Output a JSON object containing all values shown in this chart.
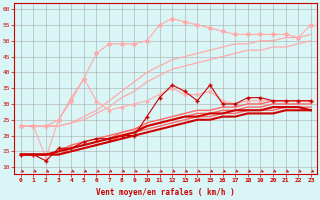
{
  "xlabel": "Vent moyen/en rafales ( km/h )",
  "x": [
    0,
    1,
    2,
    3,
    4,
    5,
    6,
    7,
    8,
    9,
    10,
    11,
    12,
    13,
    14,
    15,
    16,
    17,
    18,
    19,
    20,
    21,
    22,
    23
  ],
  "lines": [
    {
      "name": "light1_diamond",
      "color": "#ffaaaa",
      "marker": "D",
      "markersize": 2.0,
      "linewidth": 0.8,
      "values": [
        23,
        23,
        23,
        25,
        31,
        38,
        46,
        49,
        49,
        49,
        50,
        55,
        57,
        56,
        55,
        54,
        53,
        52,
        52,
        52,
        52,
        52,
        51,
        55
      ]
    },
    {
      "name": "light2_triangle",
      "color": "#ffaaaa",
      "marker": "^",
      "markersize": 2.0,
      "linewidth": 0.8,
      "values": [
        23,
        23,
        13,
        25,
        32,
        38,
        31,
        28,
        29,
        30,
        31,
        33,
        35,
        33,
        33,
        34,
        31,
        30,
        31,
        31,
        31,
        31,
        31,
        31
      ]
    },
    {
      "name": "light3_line",
      "color": "#ffaaaa",
      "marker": null,
      "markersize": 1.5,
      "linewidth": 0.9,
      "values": [
        23,
        23,
        23,
        23,
        24,
        26,
        28,
        31,
        34,
        37,
        40,
        42,
        44,
        45,
        46,
        47,
        48,
        49,
        49,
        50,
        50,
        51,
        51,
        52
      ]
    },
    {
      "name": "light4_line",
      "color": "#ffaaaa",
      "marker": null,
      "markersize": 1.5,
      "linewidth": 0.9,
      "values": [
        23,
        23,
        23,
        23,
        24,
        25,
        27,
        29,
        32,
        34,
        37,
        39,
        41,
        42,
        43,
        44,
        45,
        46,
        47,
        47,
        48,
        48,
        49,
        50
      ]
    },
    {
      "name": "medium1_line",
      "color": "#ff6666",
      "marker": null,
      "markersize": 1.5,
      "linewidth": 1.0,
      "values": [
        14,
        14,
        14,
        15,
        17,
        18,
        19,
        20,
        21,
        22,
        24,
        25,
        26,
        27,
        28,
        28,
        29,
        29,
        30,
        30,
        31,
        31,
        31,
        31
      ]
    },
    {
      "name": "medium2_line",
      "color": "#ff6666",
      "marker": null,
      "markersize": 1.5,
      "linewidth": 1.0,
      "values": [
        14,
        14,
        14,
        14,
        16,
        17,
        18,
        19,
        21,
        22,
        23,
        24,
        25,
        26,
        27,
        27,
        28,
        28,
        29,
        29,
        30,
        30,
        30,
        30
      ]
    },
    {
      "name": "medium3_line",
      "color": "#ff6666",
      "marker": null,
      "markersize": 1.5,
      "linewidth": 1.0,
      "values": [
        14,
        14,
        14,
        14,
        15,
        16,
        17,
        18,
        20,
        21,
        22,
        23,
        24,
        25,
        26,
        26,
        27,
        27,
        28,
        28,
        28,
        29,
        29,
        29
      ]
    },
    {
      "name": "dark_noisy",
      "color": "#cc0000",
      "marker": "+",
      "markersize": 2.5,
      "linewidth": 0.8,
      "values": [
        14,
        14,
        12,
        16,
        16,
        18,
        19,
        19,
        20,
        20,
        26,
        32,
        36,
        34,
        31,
        36,
        30,
        30,
        32,
        32,
        31,
        31,
        31,
        31
      ]
    },
    {
      "name": "dark_smooth1",
      "color": "#cc0000",
      "marker": null,
      "markersize": 1.5,
      "linewidth": 1.5,
      "values": [
        14,
        14,
        14,
        15,
        16,
        17,
        18,
        19,
        20,
        21,
        23,
        24,
        25,
        26,
        26,
        27,
        27,
        28,
        28,
        28,
        29,
        29,
        29,
        28
      ]
    },
    {
      "name": "dark_smooth2",
      "color": "#cc0000",
      "marker": null,
      "markersize": 1.5,
      "linewidth": 1.5,
      "values": [
        14,
        14,
        14,
        14,
        15,
        16,
        17,
        18,
        19,
        20,
        21,
        22,
        23,
        24,
        25,
        25,
        26,
        26,
        27,
        27,
        27,
        28,
        28,
        28
      ]
    }
  ],
  "ylim": [
    8,
    62
  ],
  "yticks": [
    10,
    15,
    20,
    25,
    30,
    35,
    40,
    45,
    50,
    55,
    60
  ],
  "xticks": [
    0,
    1,
    2,
    3,
    4,
    5,
    6,
    7,
    8,
    9,
    10,
    11,
    12,
    13,
    14,
    15,
    16,
    17,
    18,
    19,
    20,
    21,
    22,
    23
  ],
  "xlim": [
    -0.5,
    23.5
  ],
  "bg_color": "#d9f5f5",
  "grid_color": "#aaaaaa",
  "tick_color": "#cc0000",
  "label_color": "#cc0000",
  "arrow_color": "#cc0000",
  "xlabel_fontsize": 5.5,
  "tick_fontsize": 4.5
}
